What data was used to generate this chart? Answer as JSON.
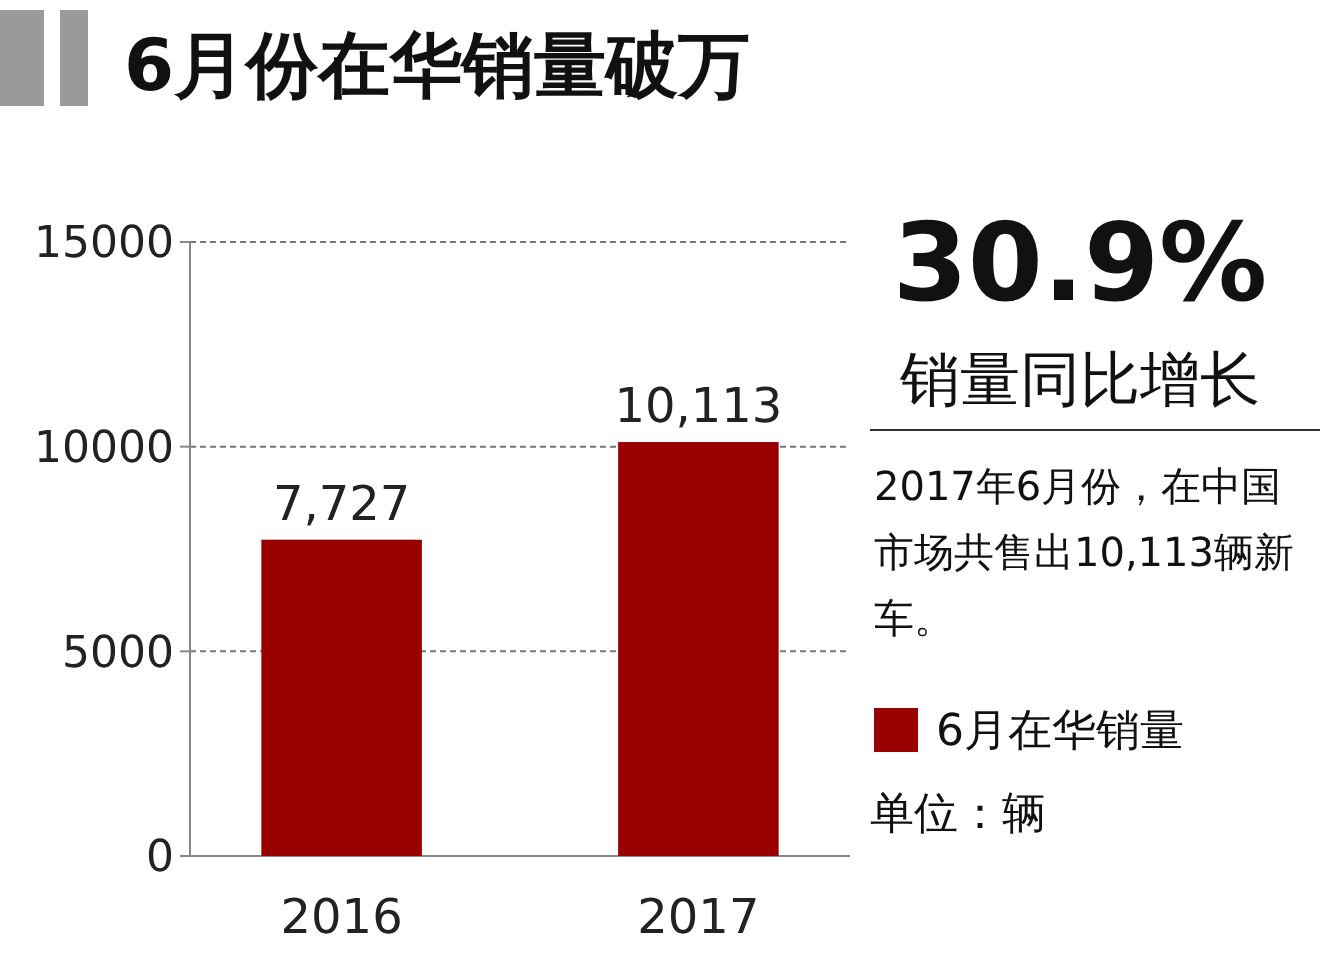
{
  "chart_data": {
    "type": "bar",
    "title": "6月份在华销量破万",
    "categories": [
      "2016",
      "2017"
    ],
    "series": [
      {
        "name": "6月在华销量",
        "color": "#990000",
        "values": [
          7727,
          10113
        ],
        "value_labels": [
          "7,727",
          "10,113"
        ]
      }
    ],
    "ylim": [
      0,
      15000
    ],
    "yticks": [
      0,
      5000,
      10000,
      15000
    ],
    "grid": "y",
    "legend": "right",
    "annotations": [
      "30.9%",
      "销量同比增长",
      "2017年6月份，在中国市场共售出10,113辆新车。",
      "单位：辆"
    ]
  }
}
